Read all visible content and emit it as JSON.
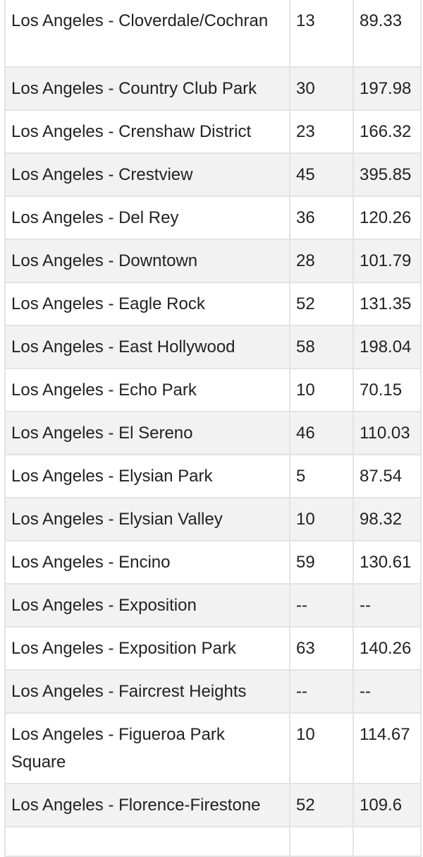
{
  "table": {
    "rows": [
      {
        "name": "Los Angeles - Cloverdale/Cochran",
        "count": "13",
        "value": "89.33",
        "lines": 2
      },
      {
        "name": "Los Angeles - Country Club Park",
        "count": "30",
        "value": "197.98",
        "lines": 1
      },
      {
        "name": "Los Angeles - Crenshaw District",
        "count": "23",
        "value": "166.32",
        "lines": 1
      },
      {
        "name": "Los Angeles - Crestview",
        "count": "45",
        "value": "395.85",
        "lines": 1
      },
      {
        "name": "Los Angeles - Del Rey",
        "count": "36",
        "value": "120.26",
        "lines": 1
      },
      {
        "name": "Los Angeles - Downtown",
        "count": "28",
        "value": "101.79",
        "lines": 1
      },
      {
        "name": "Los Angeles - Eagle Rock",
        "count": "52",
        "value": "131.35",
        "lines": 1
      },
      {
        "name": "Los Angeles - East Hollywood",
        "count": "58",
        "value": "198.04",
        "lines": 1
      },
      {
        "name": "Los Angeles - Echo Park",
        "count": "10",
        "value": "70.15",
        "lines": 1
      },
      {
        "name": "Los Angeles - El Sereno",
        "count": "46",
        "value": "110.03",
        "lines": 1
      },
      {
        "name": "Los Angeles - Elysian Park",
        "count": "5",
        "value": "87.54",
        "lines": 1
      },
      {
        "name": "Los Angeles - Elysian Valley",
        "count": "10",
        "value": "98.32",
        "lines": 1
      },
      {
        "name": "Los Angeles - Encino",
        "count": "59",
        "value": "130.61",
        "lines": 1
      },
      {
        "name": "Los Angeles - Exposition",
        "count": "--",
        "value": "--",
        "lines": 1
      },
      {
        "name": "Los Angeles - Exposition Park",
        "count": "63",
        "value": "140.26",
        "lines": 1
      },
      {
        "name": "Los Angeles - Faircrest Heights",
        "count": "--",
        "value": "--",
        "lines": 1
      },
      {
        "name": "Los Angeles - Figueroa Park Square",
        "count": "10",
        "value": "114.67",
        "lines": 2
      },
      {
        "name": "Los Angeles - Florence-Firestone",
        "count": "52",
        "value": "109.6",
        "lines": 1
      }
    ]
  }
}
